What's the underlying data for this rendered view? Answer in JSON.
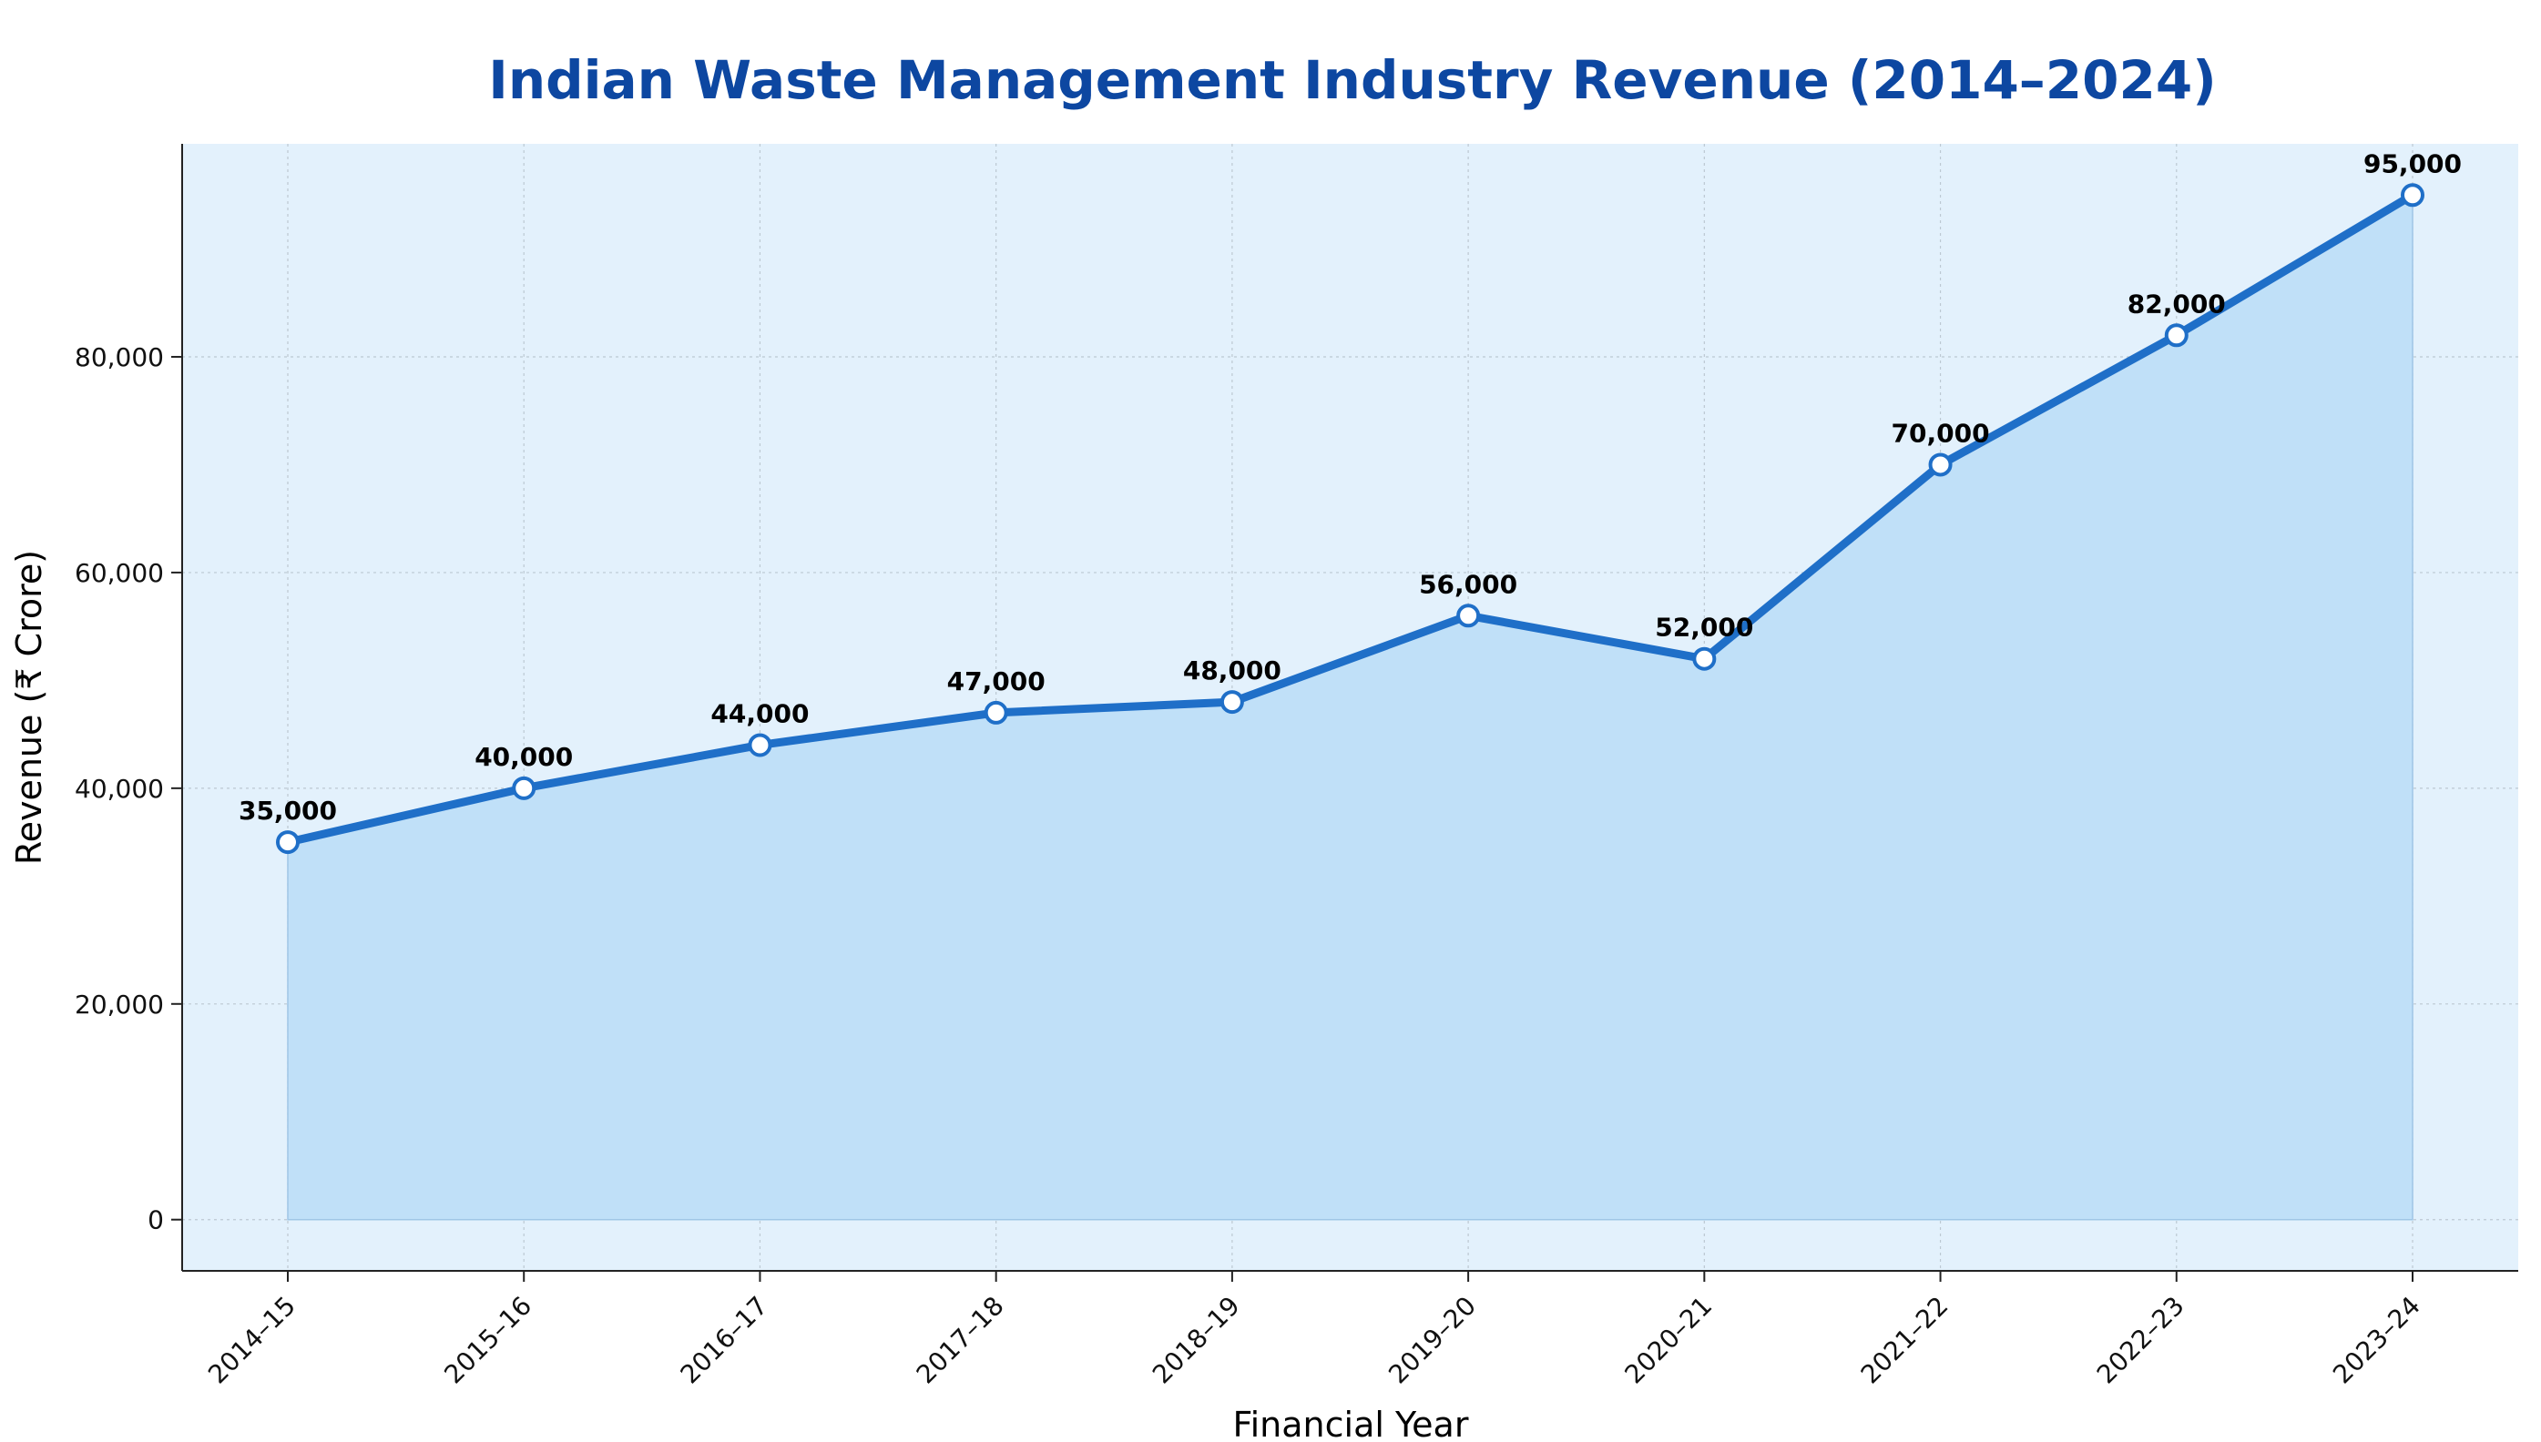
{
  "chart_data": {
    "type": "area",
    "title": "Indian Waste Management Industry Revenue (2014–2024)",
    "xlabel": "Financial Year",
    "ylabel": "Revenue (₹ Crore)",
    "categories": [
      "2014–15",
      "2015–16",
      "2016–17",
      "2017–18",
      "2018–19",
      "2019–20",
      "2020–21",
      "2021–22",
      "2022–23",
      "2023–24"
    ],
    "values": [
      35000,
      40000,
      44000,
      47000,
      48000,
      56000,
      52000,
      70000,
      82000,
      95000
    ],
    "data_labels": [
      "35,000",
      "40,000",
      "44,000",
      "47,000",
      "48,000",
      "56,000",
      "52,000",
      "70,000",
      "82,000",
      "95,000"
    ],
    "yticks": [
      0,
      20000,
      40000,
      60000,
      80000
    ],
    "ytick_labels": [
      "0",
      "20,000",
      "40,000",
      "60,000",
      "80,000"
    ],
    "ylim": [
      -4750,
      99750
    ],
    "grid": true,
    "legend": "none",
    "colors": {
      "title": "#0d47a1",
      "line": "#1f6fc8",
      "fill": "#c0e0f8",
      "plot_background": "#e3f1fc",
      "grid": "#b8c4ce",
      "marker_fill": "#ffffff"
    }
  }
}
